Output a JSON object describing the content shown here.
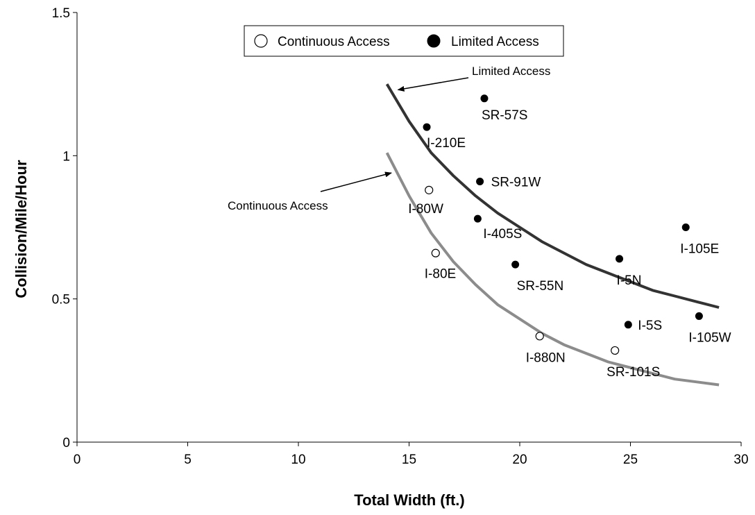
{
  "chart_data": {
    "type": "scatter",
    "title": "",
    "xlabel": "Total Width (ft.)",
    "ylabel": "Collision/Mile/Hour",
    "xlim": [
      0,
      30
    ],
    "ylim": [
      0,
      1.5
    ],
    "x_ticks": [
      "0",
      "5",
      "10",
      "15",
      "20",
      "25",
      "30"
    ],
    "y_ticks": [
      "0",
      "0.5",
      "1",
      "1.5"
    ],
    "grid": false,
    "legend_position": "top-center",
    "series": [
      {
        "name": "Continuous Access",
        "marker": "open-circle",
        "points": [
          {
            "label": "I-80W",
            "x": 15.9,
            "y": 0.88
          },
          {
            "label": "I-80E",
            "x": 16.2,
            "y": 0.66
          },
          {
            "label": "I-880N",
            "x": 20.9,
            "y": 0.37
          },
          {
            "label": "SR-101S",
            "x": 24.3,
            "y": 0.32
          }
        ]
      },
      {
        "name": "Limited Access",
        "marker": "filled-circle",
        "points": [
          {
            "label": "SR-57S",
            "x": 18.4,
            "y": 1.2
          },
          {
            "label": "I-210E",
            "x": 15.8,
            "y": 1.1
          },
          {
            "label": "SR-91W",
            "x": 18.2,
            "y": 0.91
          },
          {
            "label": "I-405S",
            "x": 18.1,
            "y": 0.78
          },
          {
            "label": "SR-55N",
            "x": 19.8,
            "y": 0.62
          },
          {
            "label": "I-105E",
            "x": 27.5,
            "y": 0.75
          },
          {
            "label": "I-5N",
            "x": 24.5,
            "y": 0.64
          },
          {
            "label": "I-5S",
            "x": 24.9,
            "y": 0.41
          },
          {
            "label": "I-105W",
            "x": 28.1,
            "y": 0.44
          }
        ]
      }
    ],
    "fit_curves": [
      {
        "name": "Limited Access",
        "color": "#333333",
        "x": [
          14,
          15,
          16,
          17,
          18,
          19,
          20,
          21,
          22,
          23,
          24,
          25,
          26,
          27,
          28,
          29
        ],
        "y": [
          1.25,
          1.12,
          1.01,
          0.93,
          0.86,
          0.8,
          0.75,
          0.7,
          0.66,
          0.62,
          0.59,
          0.56,
          0.53,
          0.51,
          0.49,
          0.47
        ]
      },
      {
        "name": "Continuous Access",
        "color": "#8c8c8c",
        "x": [
          14,
          15,
          16,
          17,
          18,
          19,
          20,
          21,
          22,
          23,
          24,
          25,
          26,
          27,
          28,
          29
        ],
        "y": [
          1.01,
          0.86,
          0.73,
          0.63,
          0.55,
          0.48,
          0.43,
          0.38,
          0.34,
          0.31,
          0.28,
          0.26,
          0.24,
          0.22,
          0.21,
          0.2
        ]
      }
    ],
    "annotations": [
      {
        "text": "Limited Access",
        "arrow_to": {
          "x": 14.5,
          "y": 1.23
        }
      },
      {
        "text": "Continuous Access",
        "arrow_to": {
          "x": 14.2,
          "y": 0.94
        }
      }
    ]
  }
}
